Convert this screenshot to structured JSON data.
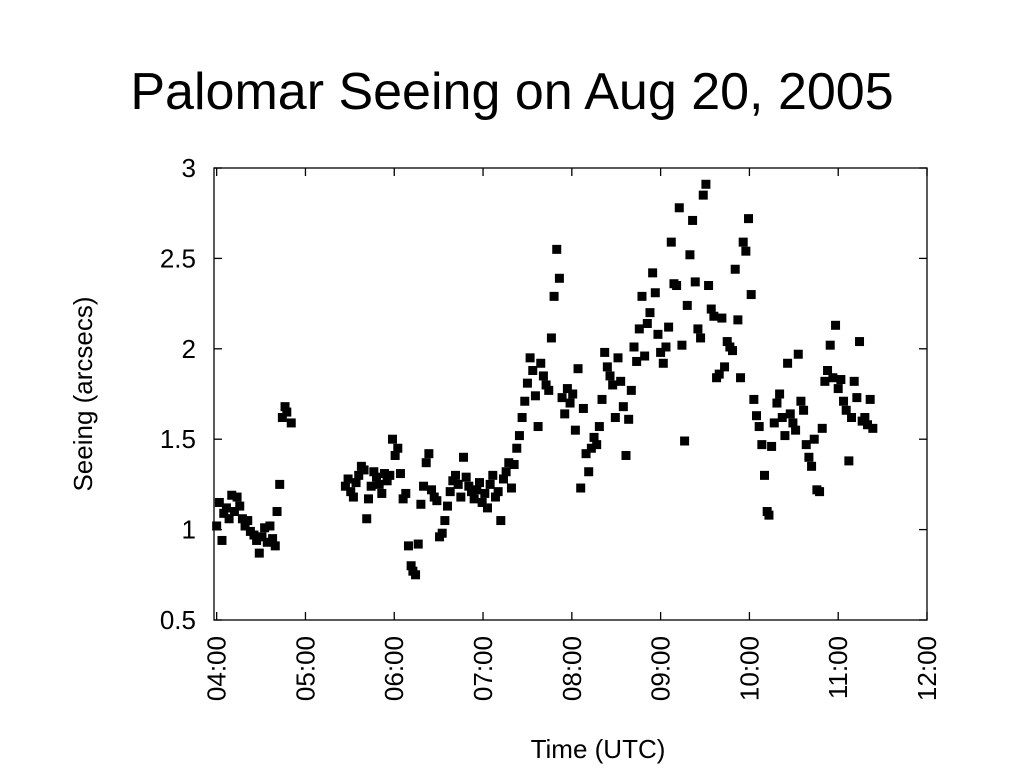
{
  "slide": {
    "title": "Palomar Seeing on Aug 20, 2005"
  },
  "chart_data": {
    "type": "scatter",
    "title": "Palomar Seeing on Aug 20, 2005",
    "xlabel": "Time (UTC)",
    "ylabel": "Seeing (arcsecs)",
    "x_unit": "hours UTC",
    "xlim": [
      3.97,
      12.0
    ],
    "ylim": [
      0.5,
      3.0
    ],
    "x_ticks": [
      4,
      5,
      6,
      7,
      8,
      9,
      10,
      11,
      12
    ],
    "x_tick_labels": [
      "04:00",
      "05:00",
      "06:00",
      "07:00",
      "08:00",
      "09:00",
      "10:00",
      "11:00",
      "12:00"
    ],
    "y_ticks": [
      0.5,
      1,
      1.5,
      2,
      2.5,
      3
    ],
    "y_tick_labels": [
      "0.5",
      "1",
      "1.5",
      "2",
      "2.5",
      "3"
    ],
    "grid": false,
    "marker": "square",
    "marker_color": "#000000",
    "points": [
      [
        4.0,
        1.02
      ],
      [
        4.03,
        1.15
      ],
      [
        4.06,
        0.94
      ],
      [
        4.08,
        1.09
      ],
      [
        4.11,
        1.12
      ],
      [
        4.14,
        1.06
      ],
      [
        4.17,
        1.19
      ],
      [
        4.2,
        1.1
      ],
      [
        4.23,
        1.18
      ],
      [
        4.26,
        1.13
      ],
      [
        4.29,
        1.06
      ],
      [
        4.32,
        1.02
      ],
      [
        4.35,
        1.05
      ],
      [
        4.38,
        0.99
      ],
      [
        4.42,
        0.97
      ],
      [
        4.45,
        0.94
      ],
      [
        4.48,
        0.87
      ],
      [
        4.51,
        0.96
      ],
      [
        4.54,
        1.01
      ],
      [
        4.57,
        0.93
      ],
      [
        4.6,
        1.02
      ],
      [
        4.63,
        0.95
      ],
      [
        4.66,
        0.91
      ],
      [
        4.68,
        1.1
      ],
      [
        4.71,
        1.25
      ],
      [
        4.74,
        1.62
      ],
      [
        4.77,
        1.68
      ],
      [
        4.79,
        1.65
      ],
      [
        4.84,
        1.59
      ],
      [
        5.45,
        1.24
      ],
      [
        5.48,
        1.28
      ],
      [
        5.51,
        1.21
      ],
      [
        5.54,
        1.18
      ],
      [
        5.57,
        1.26
      ],
      [
        5.6,
        1.3
      ],
      [
        5.63,
        1.35
      ],
      [
        5.66,
        1.33
      ],
      [
        5.69,
        1.06
      ],
      [
        5.71,
        1.17
      ],
      [
        5.74,
        1.24
      ],
      [
        5.77,
        1.32
      ],
      [
        5.8,
        1.29
      ],
      [
        5.83,
        1.25
      ],
      [
        5.86,
        1.2
      ],
      [
        5.89,
        1.31
      ],
      [
        5.92,
        1.27
      ],
      [
        5.95,
        1.3
      ],
      [
        5.98,
        1.5
      ],
      [
        6.01,
        1.41
      ],
      [
        6.04,
        1.45
      ],
      [
        6.07,
        1.31
      ],
      [
        6.1,
        1.17
      ],
      [
        6.13,
        1.2
      ],
      [
        6.16,
        0.91
      ],
      [
        6.19,
        0.8
      ],
      [
        6.21,
        0.77
      ],
      [
        6.24,
        0.75
      ],
      [
        6.27,
        0.92
      ],
      [
        6.3,
        1.14
      ],
      [
        6.33,
        1.24
      ],
      [
        6.36,
        1.37
      ],
      [
        6.39,
        1.42
      ],
      [
        6.42,
        1.22
      ],
      [
        6.45,
        1.18
      ],
      [
        6.48,
        1.16
      ],
      [
        6.51,
        0.96
      ],
      [
        6.54,
        0.98
      ],
      [
        6.57,
        1.05
      ],
      [
        6.6,
        1.13
      ],
      [
        6.63,
        1.21
      ],
      [
        6.66,
        1.27
      ],
      [
        6.69,
        1.3
      ],
      [
        6.72,
        1.25
      ],
      [
        6.75,
        1.18
      ],
      [
        6.78,
        1.4
      ],
      [
        6.81,
        1.29
      ],
      [
        6.84,
        1.24
      ],
      [
        6.87,
        1.21
      ],
      [
        6.9,
        1.17
      ],
      [
        6.93,
        1.22
      ],
      [
        6.96,
        1.26
      ],
      [
        6.99,
        1.15
      ],
      [
        7.02,
        1.2
      ],
      [
        7.05,
        1.12
      ],
      [
        7.08,
        1.25
      ],
      [
        7.11,
        1.3
      ],
      [
        7.14,
        1.18
      ],
      [
        7.17,
        1.21
      ],
      [
        7.2,
        1.05
      ],
      [
        7.23,
        1.28
      ],
      [
        7.26,
        1.32
      ],
      [
        7.29,
        1.37
      ],
      [
        7.32,
        1.23
      ],
      [
        7.35,
        1.36
      ],
      [
        7.38,
        1.45
      ],
      [
        7.41,
        1.52
      ],
      [
        7.44,
        1.62
      ],
      [
        7.47,
        1.71
      ],
      [
        7.5,
        1.81
      ],
      [
        7.53,
        1.95
      ],
      [
        7.56,
        1.88
      ],
      [
        7.59,
        1.74
      ],
      [
        7.62,
        1.57
      ],
      [
        7.65,
        1.92
      ],
      [
        7.68,
        1.85
      ],
      [
        7.71,
        1.8
      ],
      [
        7.74,
        1.77
      ],
      [
        7.77,
        2.06
      ],
      [
        7.8,
        2.29
      ],
      [
        7.83,
        2.55
      ],
      [
        7.86,
        2.39
      ],
      [
        7.89,
        1.73
      ],
      [
        7.92,
        1.64
      ],
      [
        7.95,
        1.78
      ],
      [
        7.98,
        1.7
      ],
      [
        8.01,
        1.75
      ],
      [
        8.04,
        1.55
      ],
      [
        8.07,
        1.89
      ],
      [
        8.1,
        1.23
      ],
      [
        8.13,
        1.67
      ],
      [
        8.16,
        1.42
      ],
      [
        8.19,
        1.32
      ],
      [
        8.22,
        1.45
      ],
      [
        8.25,
        1.51
      ],
      [
        8.28,
        1.47
      ],
      [
        8.31,
        1.57
      ],
      [
        8.34,
        1.72
      ],
      [
        8.37,
        1.98
      ],
      [
        8.4,
        1.9
      ],
      [
        8.43,
        1.85
      ],
      [
        8.46,
        1.8
      ],
      [
        8.49,
        1.62
      ],
      [
        8.52,
        1.95
      ],
      [
        8.55,
        1.82
      ],
      [
        8.58,
        1.68
      ],
      [
        8.61,
        1.41
      ],
      [
        8.64,
        1.61
      ],
      [
        8.67,
        1.77
      ],
      [
        8.7,
        2.01
      ],
      [
        8.73,
        1.93
      ],
      [
        8.76,
        2.11
      ],
      [
        8.79,
        2.29
      ],
      [
        8.82,
        1.96
      ],
      [
        8.85,
        2.14
      ],
      [
        8.88,
        2.2
      ],
      [
        8.91,
        2.42
      ],
      [
        8.94,
        2.31
      ],
      [
        8.97,
        2.08
      ],
      [
        9.0,
        1.98
      ],
      [
        9.03,
        1.92
      ],
      [
        9.06,
        2.01
      ],
      [
        9.09,
        2.12
      ],
      [
        9.12,
        2.59
      ],
      [
        9.15,
        2.36
      ],
      [
        9.18,
        2.35
      ],
      [
        9.21,
        2.78
      ],
      [
        9.24,
        2.02
      ],
      [
        9.27,
        1.49
      ],
      [
        9.3,
        2.24
      ],
      [
        9.33,
        2.52
      ],
      [
        9.36,
        2.71
      ],
      [
        9.39,
        2.37
      ],
      [
        9.42,
        2.11
      ],
      [
        9.45,
        2.06
      ],
      [
        9.48,
        2.85
      ],
      [
        9.51,
        2.91
      ],
      [
        9.54,
        2.35
      ],
      [
        9.57,
        2.22
      ],
      [
        9.6,
        2.18
      ],
      [
        9.63,
        1.84
      ],
      [
        9.66,
        1.86
      ],
      [
        9.69,
        2.17
      ],
      [
        9.72,
        1.9
      ],
      [
        9.75,
        2.04
      ],
      [
        9.78,
        2.01
      ],
      [
        9.81,
        1.99
      ],
      [
        9.84,
        2.44
      ],
      [
        9.87,
        2.16
      ],
      [
        9.9,
        1.84
      ],
      [
        9.93,
        2.59
      ],
      [
        9.96,
        2.54
      ],
      [
        9.99,
        2.72
      ],
      [
        10.02,
        2.3
      ],
      [
        10.05,
        1.72
      ],
      [
        10.08,
        1.63
      ],
      [
        10.11,
        1.57
      ],
      [
        10.14,
        1.47
      ],
      [
        10.17,
        1.3
      ],
      [
        10.2,
        1.1
      ],
      [
        10.22,
        1.08
      ],
      [
        10.25,
        1.46
      ],
      [
        10.28,
        1.59
      ],
      [
        10.31,
        1.7
      ],
      [
        10.34,
        1.75
      ],
      [
        10.37,
        1.62
      ],
      [
        10.4,
        1.52
      ],
      [
        10.43,
        1.92
      ],
      [
        10.46,
        1.64
      ],
      [
        10.49,
        1.59
      ],
      [
        10.52,
        1.55
      ],
      [
        10.55,
        1.97
      ],
      [
        10.58,
        1.71
      ],
      [
        10.61,
        1.66
      ],
      [
        10.64,
        1.47
      ],
      [
        10.67,
        1.4
      ],
      [
        10.7,
        1.35
      ],
      [
        10.73,
        1.5
      ],
      [
        10.76,
        1.22
      ],
      [
        10.79,
        1.21
      ],
      [
        10.82,
        1.56
      ],
      [
        10.85,
        1.82
      ],
      [
        10.88,
        1.88
      ],
      [
        10.91,
        2.02
      ],
      [
        10.94,
        1.84
      ],
      [
        10.97,
        2.13
      ],
      [
        11.0,
        1.78
      ],
      [
        11.03,
        1.83
      ],
      [
        11.06,
        1.71
      ],
      [
        11.09,
        1.66
      ],
      [
        11.12,
        1.38
      ],
      [
        11.15,
        1.62
      ],
      [
        11.18,
        1.82
      ],
      [
        11.21,
        1.73
      ],
      [
        11.24,
        2.04
      ],
      [
        11.27,
        1.6
      ],
      [
        11.3,
        1.62
      ],
      [
        11.33,
        1.58
      ],
      [
        11.36,
        1.72
      ],
      [
        11.39,
        1.56
      ]
    ]
  }
}
